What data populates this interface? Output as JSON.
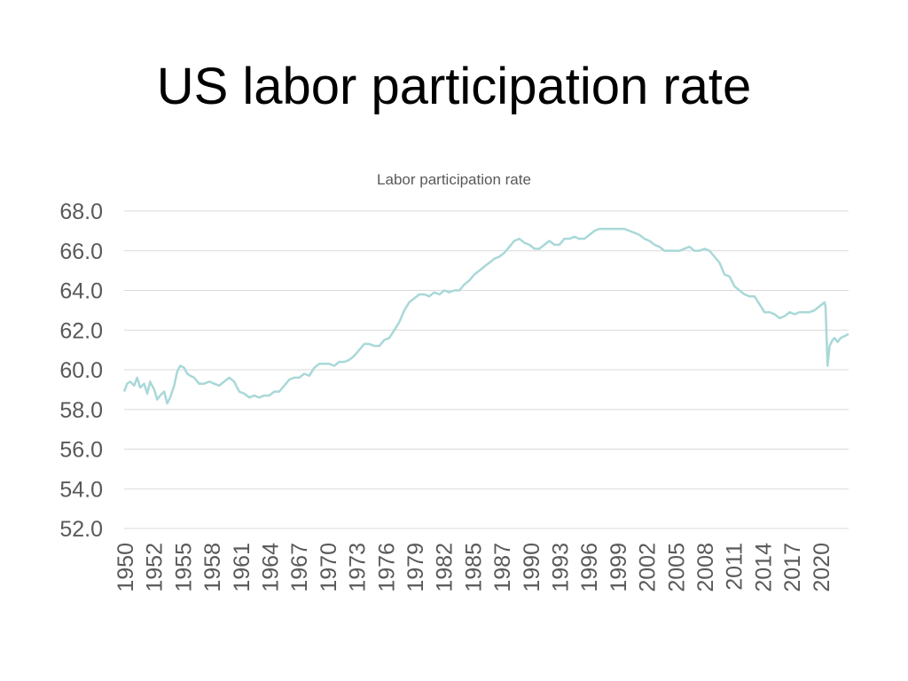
{
  "slide": {
    "title": "US labor participation rate"
  },
  "colors": {
    "series_line": "#a9d8d8",
    "gridline": "#d9d9d9",
    "axis_text": "#595959"
  },
  "chart_data": {
    "type": "line",
    "title": "Labor participation rate",
    "xlabel": "",
    "ylabel": "",
    "ylim": [
      52,
      68
    ],
    "xlim": [
      1950,
      2022.4
    ],
    "y_ticks": [
      "52.0",
      "54.0",
      "56.0",
      "58.0",
      "60.0",
      "62.0",
      "64.0",
      "66.0",
      "68.0"
    ],
    "x_ticks": [
      "1950",
      "1952",
      "1955",
      "1958",
      "1961",
      "1964",
      "1967",
      "1970",
      "1973",
      "1976",
      "1979",
      "1982",
      "1985",
      "1987",
      "1990",
      "1993",
      "1996",
      "1999",
      "2002",
      "2005",
      "2008",
      "2011",
      "2014",
      "2017",
      "2020"
    ],
    "grid": true,
    "legend": "none",
    "series": [
      {
        "x": [
          1950.0,
          1950.3,
          1950.6,
          1951.0,
          1951.3,
          1951.6,
          1952.0,
          1952.3,
          1952.6,
          1953.0,
          1953.3,
          1953.6,
          1954.0,
          1954.3,
          1954.6,
          1955.0,
          1955.3,
          1955.6,
          1956.0,
          1956.3,
          1956.6,
          1957.0,
          1957.5,
          1958.0,
          1958.5,
          1959.0,
          1959.5,
          1960.0,
          1960.5,
          1961.0,
          1961.5,
          1962.0,
          1962.5,
          1963.0,
          1963.5,
          1964.0,
          1964.5,
          1965.0,
          1965.5,
          1966.0,
          1966.5,
          1967.0,
          1967.5,
          1968.0,
          1968.5,
          1969.0,
          1969.5,
          1970.0,
          1970.5,
          1971.0,
          1971.5,
          1972.0,
          1972.5,
          1973.0,
          1973.5,
          1974.0,
          1974.5,
          1975.0,
          1975.5,
          1976.0,
          1976.5,
          1977.0,
          1977.5,
          1978.0,
          1978.5,
          1979.0,
          1979.5,
          1980.0,
          1980.5,
          1981.0,
          1981.5,
          1982.0,
          1982.5,
          1983.0,
          1983.5,
          1984.0,
          1984.5,
          1985.0,
          1985.5,
          1986.0,
          1986.5,
          1987.0,
          1987.5,
          1988.0,
          1988.5,
          1989.0,
          1989.5,
          1990.0,
          1990.5,
          1991.0,
          1991.5,
          1992.0,
          1992.5,
          1993.0,
          1993.5,
          1994.0,
          1994.5,
          1995.0,
          1995.5,
          1996.0,
          1996.5,
          1997.0,
          1997.5,
          1998.0,
          1998.5,
          1999.0,
          1999.5,
          2000.0,
          2000.5,
          2001.0,
          2001.5,
          2002.0,
          2002.5,
          2003.0,
          2003.5,
          2004.0,
          2004.5,
          2005.0,
          2005.5,
          2006.0,
          2006.5,
          2007.0,
          2007.5,
          2008.0,
          2008.5,
          2009.0,
          2009.5,
          2010.0,
          2010.5,
          2011.0,
          2011.5,
          2012.0,
          2012.5,
          2013.0,
          2013.5,
          2014.0,
          2014.5,
          2015.0,
          2015.5,
          2016.0,
          2016.5,
          2017.0,
          2017.5,
          2018.0,
          2018.5,
          2019.0,
          2019.5,
          2020.0,
          2020.1,
          2020.3,
          2020.5,
          2020.8,
          2021.0,
          2021.3,
          2021.6,
          2022.0,
          2022.4
        ],
        "values": [
          58.9,
          59.3,
          59.4,
          59.2,
          59.6,
          59.1,
          59.3,
          58.8,
          59.4,
          59.0,
          58.5,
          58.7,
          58.9,
          58.3,
          58.6,
          59.2,
          59.9,
          60.2,
          60.1,
          59.8,
          59.7,
          59.6,
          59.3,
          59.3,
          59.4,
          59.3,
          59.2,
          59.4,
          59.6,
          59.4,
          58.9,
          58.8,
          58.6,
          58.7,
          58.6,
          58.7,
          58.7,
          58.9,
          58.9,
          59.2,
          59.5,
          59.6,
          59.6,
          59.8,
          59.7,
          60.1,
          60.3,
          60.3,
          60.3,
          60.2,
          60.4,
          60.4,
          60.5,
          60.7,
          61.0,
          61.3,
          61.3,
          61.2,
          61.2,
          61.5,
          61.6,
          62.0,
          62.4,
          63.0,
          63.4,
          63.6,
          63.8,
          63.8,
          63.7,
          63.9,
          63.8,
          64.0,
          63.9,
          64.0,
          64.0,
          64.3,
          64.5,
          64.8,
          65.0,
          65.2,
          65.4,
          65.6,
          65.7,
          65.9,
          66.2,
          66.5,
          66.6,
          66.4,
          66.3,
          66.1,
          66.1,
          66.3,
          66.5,
          66.3,
          66.3,
          66.6,
          66.6,
          66.7,
          66.6,
          66.6,
          66.8,
          67.0,
          67.1,
          67.1,
          67.1,
          67.1,
          67.1,
          67.1,
          67.0,
          66.9,
          66.8,
          66.6,
          66.5,
          66.3,
          66.2,
          66.0,
          66.0,
          66.0,
          66.0,
          66.1,
          66.2,
          66.0,
          66.0,
          66.1,
          66.0,
          65.7,
          65.4,
          64.8,
          64.7,
          64.2,
          64.0,
          63.8,
          63.7,
          63.7,
          63.3,
          62.9,
          62.9,
          62.8,
          62.6,
          62.7,
          62.9,
          62.8,
          62.9,
          62.9,
          62.9,
          63.0,
          63.2,
          63.4,
          63.2,
          60.2,
          61.2,
          61.5,
          61.6,
          61.4,
          61.6,
          61.7,
          61.8
        ]
      }
    ]
  }
}
